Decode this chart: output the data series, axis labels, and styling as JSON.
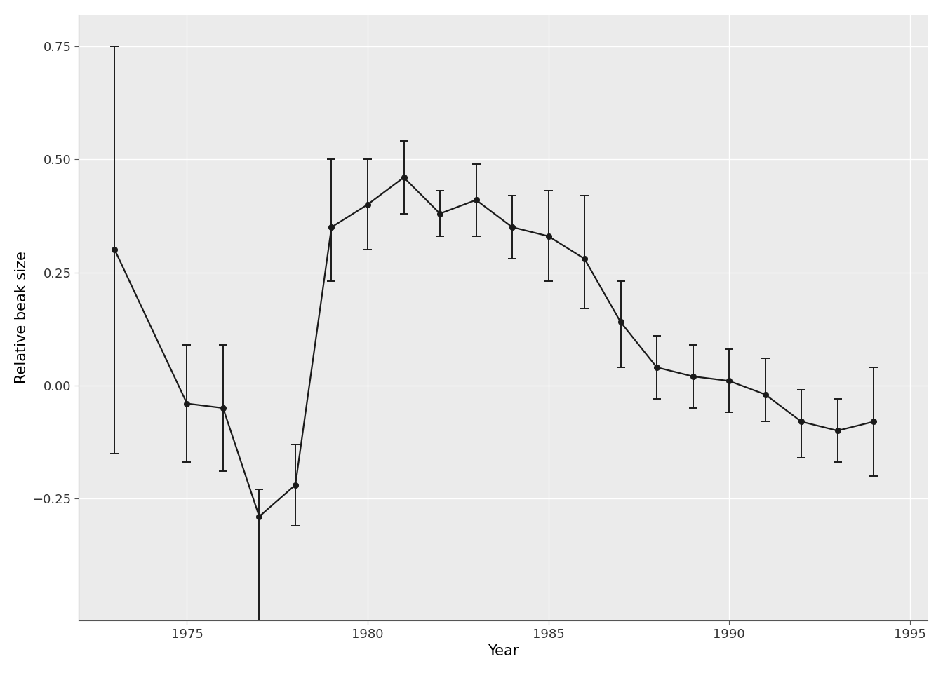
{
  "years": [
    1973,
    1975,
    1976,
    1977,
    1978,
    1979,
    1980,
    1981,
    1982,
    1983,
    1984,
    1985,
    1986,
    1987,
    1988,
    1989,
    1990,
    1991,
    1992,
    1993,
    1994
  ],
  "values": [
    0.3,
    -0.04,
    -0.05,
    -0.29,
    -0.22,
    0.35,
    0.4,
    0.46,
    0.38,
    0.41,
    0.35,
    0.33,
    0.28,
    0.14,
    0.04,
    0.02,
    0.01,
    -0.02,
    -0.08,
    -0.1,
    -0.08
  ],
  "err_upper": [
    0.45,
    0.13,
    0.14,
    0.06,
    0.09,
    0.15,
    0.1,
    0.08,
    0.05,
    0.08,
    0.07,
    0.1,
    0.14,
    0.09,
    0.07,
    0.07,
    0.07,
    0.08,
    0.07,
    0.07,
    0.12
  ],
  "err_lower": [
    0.45,
    0.13,
    0.14,
    0.38,
    0.09,
    0.12,
    0.1,
    0.08,
    0.05,
    0.08,
    0.07,
    0.1,
    0.11,
    0.1,
    0.07,
    0.07,
    0.07,
    0.06,
    0.08,
    0.07,
    0.12
  ],
  "xlabel": "Year",
  "ylabel": "Relative beak size",
  "xlim": [
    1972.0,
    1995.5
  ],
  "ylim": [
    -0.52,
    0.82
  ],
  "yticks": [
    -0.25,
    0.0,
    0.25,
    0.5,
    0.75
  ],
  "xticks": [
    1975,
    1980,
    1985,
    1990,
    1995
  ],
  "line_color": "#1a1a1a",
  "marker_color": "#1a1a1a",
  "panel_background": "#ebebeb",
  "figure_background": "#ffffff",
  "grid_color": "#ffffff",
  "tick_labelsize": 13,
  "axis_labelsize": 15,
  "spine_color": "#555555"
}
